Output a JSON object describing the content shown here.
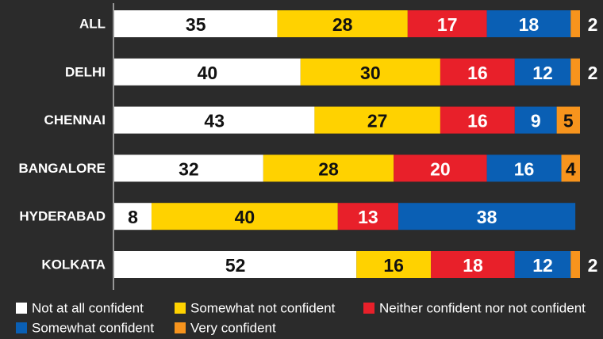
{
  "chart_data": {
    "type": "stacked-bar",
    "orientation": "horizontal",
    "categories": [
      "ALL",
      "DELHI",
      "CHENNAI",
      "BANGALORE",
      "HYDERABAD",
      "KOLKATA"
    ],
    "series": [
      {
        "name": "Not at all confident",
        "color": "#ffffff",
        "values": [
          35,
          40,
          43,
          32,
          8,
          52
        ]
      },
      {
        "name": "Somewhat not confident",
        "color": "#ffd200",
        "values": [
          28,
          30,
          27,
          28,
          40,
          16
        ]
      },
      {
        "name": "Neither confident nor not confident",
        "color": "#e8202a",
        "values": [
          17,
          16,
          16,
          20,
          13,
          18
        ]
      },
      {
        "name": "Somewhat confident",
        "color": "#0a5fb4",
        "values": [
          18,
          12,
          9,
          16,
          38,
          12
        ]
      },
      {
        "name": "Very confident",
        "color": "#f7941d",
        "values": [
          2,
          2,
          5,
          4,
          null,
          2
        ]
      }
    ],
    "legend": "bottom"
  }
}
